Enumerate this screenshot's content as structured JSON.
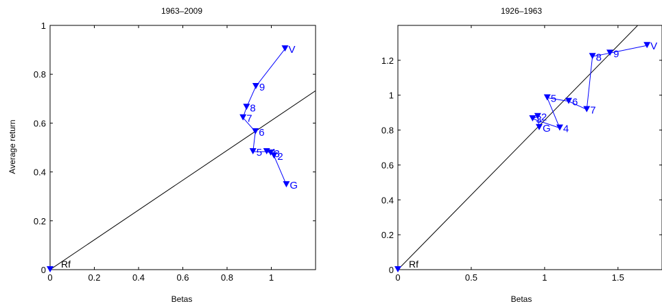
{
  "chart_data": [
    {
      "type": "line",
      "title": "1963–2009",
      "xlabel": "Betas",
      "ylabel": "Average return",
      "xlim": [
        0,
        1.2
      ],
      "ylim": [
        0,
        1
      ],
      "xticks": [
        0,
        0.2,
        0.4,
        0.6,
        0.8,
        1
      ],
      "xtick_labels": [
        "0",
        "0.2",
        "0.4",
        "0.6",
        "0.8",
        "1"
      ],
      "yticks": [
        0,
        0.2,
        0.4,
        0.6,
        0.8,
        1
      ],
      "ytick_labels": [
        "0",
        "0.2",
        "0.4",
        "0.6",
        "0.8",
        "1"
      ],
      "grid": false,
      "line_color": "#0000ff",
      "reference_line": {
        "x": [
          0,
          1.2
        ],
        "y": [
          0,
          0.7323
        ],
        "color": "#000000"
      },
      "origin_point": {
        "label": "Rf",
        "x": 0,
        "y": 0
      },
      "series": [
        {
          "points": [
            {
              "label": "G",
              "x": 1.068,
              "y": 0.348
            },
            {
              "label": "2",
              "x": 1.012,
              "y": 0.466
            },
            {
              "label": "3",
              "x": 0.997,
              "y": 0.478
            },
            {
              "label": "4",
              "x": 0.979,
              "y": 0.483
            },
            {
              "label": "5",
              "x": 0.917,
              "y": 0.483
            },
            {
              "label": "6",
              "x": 0.928,
              "y": 0.565
            },
            {
              "label": "7",
              "x": 0.872,
              "y": 0.622
            },
            {
              "label": "8",
              "x": 0.888,
              "y": 0.665
            },
            {
              "label": "9",
              "x": 0.93,
              "y": 0.75
            },
            {
              "label": "V",
              "x": 1.062,
              "y": 0.904
            }
          ]
        }
      ]
    },
    {
      "type": "line",
      "title": "1926–1963",
      "xlabel": "Betas",
      "ylabel": "",
      "xlim": [
        0,
        1.8
      ],
      "ylim": [
        0,
        1.4
      ],
      "xticks": [
        0,
        0.5,
        1,
        1.5
      ],
      "xtick_labels": [
        "0",
        "0.5",
        "1",
        "1.5"
      ],
      "yticks": [
        0,
        0.2,
        0.4,
        0.6,
        0.8,
        1,
        1.2
      ],
      "ytick_labels": [
        "0",
        "0.2",
        "0.4",
        "0.6",
        "0.8",
        "1",
        "1.2"
      ],
      "grid": false,
      "line_color": "#0000ff",
      "reference_line": {
        "x": [
          0,
          1.8
        ],
        "y": [
          0,
          1.5417
        ],
        "color": "#000000"
      },
      "origin_point": {
        "label": "Rf",
        "x": 0,
        "y": 0
      },
      "series": [
        {
          "points": [
            {
              "label": "G",
              "x": 0.963,
              "y": 0.815
            },
            {
              "label": "2",
              "x": 0.953,
              "y": 0.878
            },
            {
              "label": "3",
              "x": 0.918,
              "y": 0.865
            },
            {
              "label": "4",
              "x": 1.103,
              "y": 0.812
            },
            {
              "label": "5",
              "x": 1.018,
              "y": 0.985
            },
            {
              "label": "6",
              "x": 1.164,
              "y": 0.965
            },
            {
              "label": "7",
              "x": 1.287,
              "y": 0.918
            },
            {
              "label": "8",
              "x": 1.326,
              "y": 1.222
            },
            {
              "label": "9",
              "x": 1.445,
              "y": 1.241
            },
            {
              "label": "V",
              "x": 1.698,
              "y": 1.285
            }
          ]
        }
      ]
    }
  ]
}
